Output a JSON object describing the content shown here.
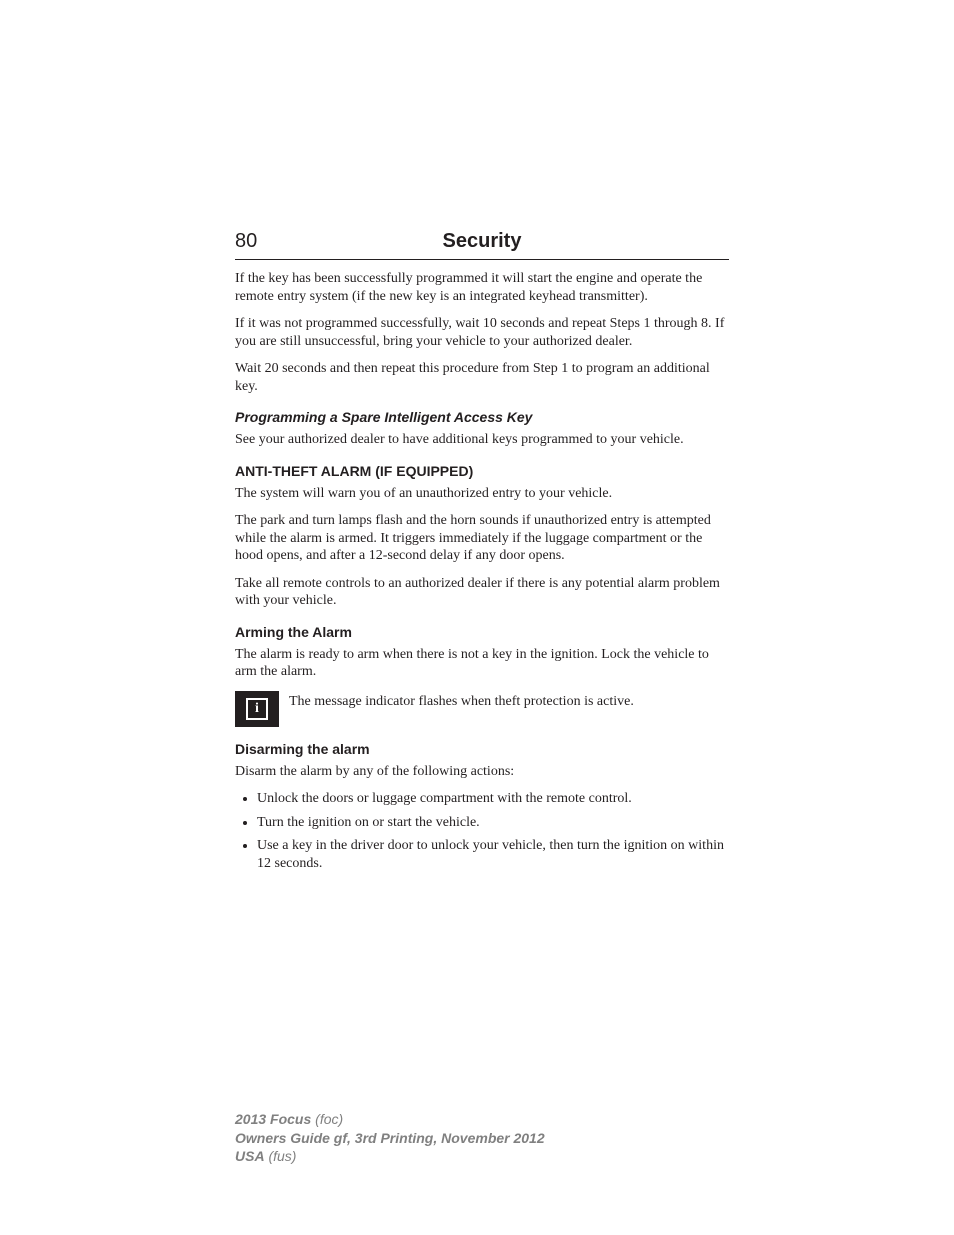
{
  "colors": {
    "text": "#231f20",
    "footer": "#808080",
    "background": "#ffffff",
    "iconBg": "#231f20",
    "iconFg": "#ffffff",
    "rule": "#231f20"
  },
  "typography": {
    "body_font": "Georgia, 'Times New Roman', serif",
    "heading_font": "Arial, Helvetica, sans-serif",
    "body_size_pt": 11,
    "heading_size_pt": 15,
    "subheading_size_pt": 11,
    "footer_size_pt": 11
  },
  "header": {
    "pageNumber": "80",
    "title": "Security"
  },
  "paragraphs": {
    "p1": "If the key has been successfully programmed it will start the engine and operate the remote entry system (if the new key is an integrated keyhead transmitter).",
    "p2": "If it was not programmed successfully, wait 10 seconds and repeat Steps 1 through 8. If you are still unsuccessful, bring your vehicle to your authorized dealer.",
    "p3": "Wait 20 seconds and then repeat this procedure from Step 1 to program an additional key.",
    "sub1": "Programming a Spare Intelligent Access Key",
    "p4": "See your authorized dealer to have additional keys programmed to your vehicle.",
    "h1": "ANTI-THEFT ALARM (IF EQUIPPED)",
    "p5": "The system will warn you of an unauthorized entry to your vehicle.",
    "p6": "The park and turn lamps flash and the horn sounds if unauthorized entry is attempted while the alarm is armed. It triggers immediately if the luggage compartment or the hood opens, and after a 12-second delay if any door opens.",
    "p7": "Take all remote controls to an authorized dealer if there is any potential alarm problem with your vehicle.",
    "sub2": "Arming the Alarm",
    "p8": "The alarm is ready to arm when there is not a key in the ignition. Lock the vehicle to arm the alarm.",
    "iconText": "The message indicator flashes when theft protection is active.",
    "sub3": "Disarming the alarm",
    "p9": "Disarm the alarm by any of the following actions:"
  },
  "bullets": [
    "Unlock the doors or luggage compartment with the remote control.",
    "Turn the ignition on or start the vehicle.",
    "Use a key in the driver door to unlock your vehicle, then turn the ignition on within 12 seconds."
  ],
  "footer": {
    "line1a": "2013 Focus",
    "line1b": " (foc)",
    "line2": "Owners Guide gf, 3rd Printing, November 2012",
    "line3a": "USA",
    "line3b": " (fus)"
  },
  "iconGlyph": "i"
}
